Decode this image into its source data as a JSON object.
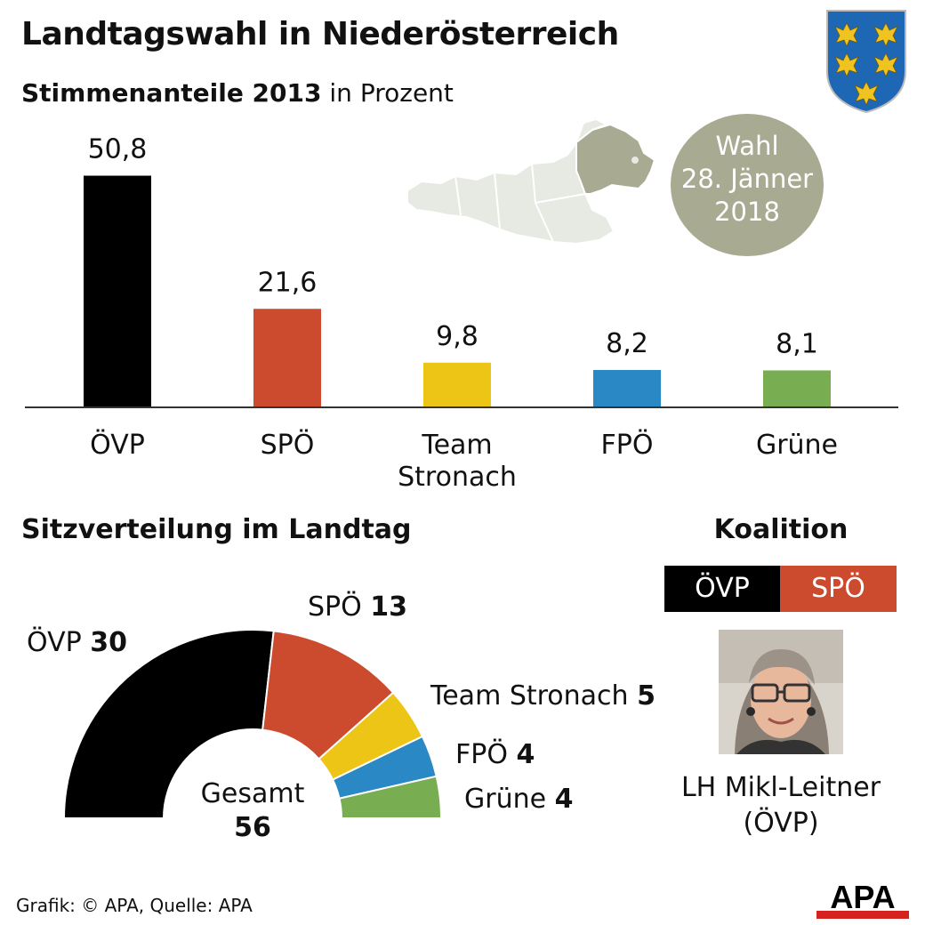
{
  "header": {
    "title": "Landtagswahl in Niederösterreich",
    "subtitle_bold": "Stimmenanteile 2013",
    "subtitle_rest": " in Prozent"
  },
  "election": {
    "line1": "Wahl",
    "line2": "28. Jänner",
    "line3": "2018"
  },
  "colors": {
    "OEVP": "#000000",
    "SPOE": "#cc4a2e",
    "Team": "#ecc516",
    "FPOE": "#2a88c4",
    "Gruene": "#78ad52",
    "map_land": "#e7eae3",
    "map_highlight": "#a9aa92"
  },
  "chart_data": [
    {
      "type": "bar",
      "title": "Stimmenanteile 2013 in Prozent",
      "categories": [
        [
          "ÖVP"
        ],
        [
          "SPÖ"
        ],
        [
          "Team",
          "Stronach"
        ],
        [
          "FPÖ"
        ],
        [
          "Grüne"
        ]
      ],
      "values": [
        50.8,
        21.6,
        9.8,
        8.2,
        8.1
      ],
      "value_labels": [
        "50,8",
        "21,6",
        "9,8",
        "8,2",
        "8,1"
      ],
      "ylim": [
        0,
        55
      ]
    },
    {
      "type": "pie",
      "title": "Sitzverteilung im Landtag",
      "labels": [
        "ÖVP",
        "SPÖ",
        "Team Stronach",
        "FPÖ",
        "Grüne"
      ],
      "values": [
        30,
        13,
        5,
        4,
        4
      ],
      "total_label": "Gesamt",
      "total_value": "56"
    }
  ],
  "coalition": {
    "title": "Koalition",
    "party1": "ÖVP",
    "party2": "SPÖ"
  },
  "person": {
    "line1": "LH Mikl-Leitner",
    "line2": "(ÖVP)"
  },
  "footer": {
    "credit": "Grafik: © APA, Quelle: APA",
    "logo": "APA"
  },
  "icons": {
    "crest": "lower-austria-crest-icon",
    "map": "austria-map-icon",
    "portrait": "portrait-icon"
  }
}
